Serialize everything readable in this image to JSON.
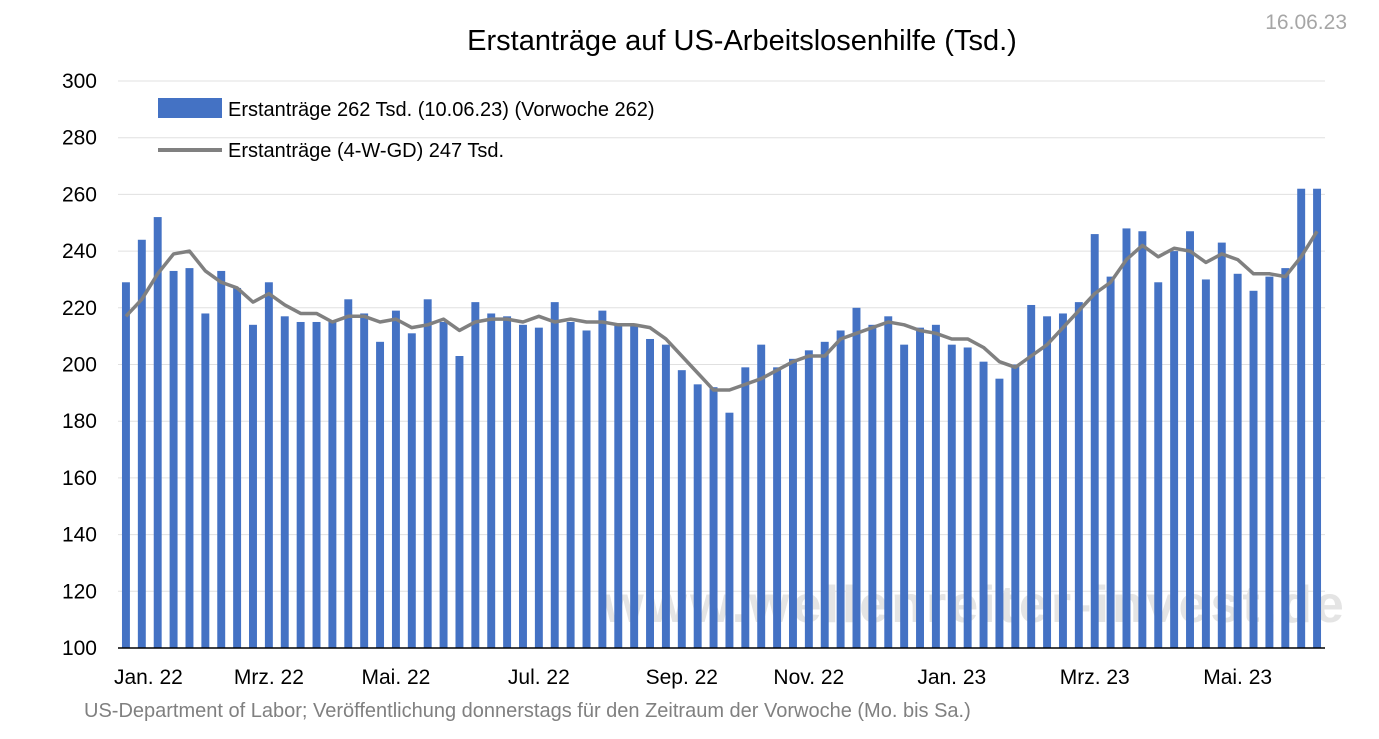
{
  "header": {
    "date": "16.06.23"
  },
  "footer": {
    "source": "US-Department of Labor; Veröffentlichung donnerstags für den Zeitraum der Vorwoche (Mo. bis Sa.)"
  },
  "watermark": "www.wellenreiter-invest.de",
  "colors": {
    "bars": "#4472c4",
    "line": "#808080",
    "grid": "#e0e0e0"
  },
  "chart_data": {
    "type": "bar",
    "title": "Erstanträge auf US-Arbeitslosenhilfe (Tsd.)",
    "xlabel": "",
    "ylabel": "",
    "ylim": [
      100,
      300
    ],
    "yticks": [
      100,
      120,
      140,
      160,
      180,
      200,
      220,
      240,
      260,
      280,
      300
    ],
    "grid": true,
    "legend_position": "top-left",
    "x_tick_labels": [
      {
        "label": "Jan. 22",
        "index": 0
      },
      {
        "label": "Mrz. 22",
        "index": 9
      },
      {
        "label": "Mai. 22",
        "index": 17
      },
      {
        "label": "Jul. 22",
        "index": 26
      },
      {
        "label": "Sep. 22",
        "index": 35
      },
      {
        "label": "Nov. 22",
        "index": 43
      },
      {
        "label": "Jan. 23",
        "index": 52
      },
      {
        "label": "Mrz. 23",
        "index": 61
      },
      {
        "label": "Mai. 23",
        "index": 70
      }
    ],
    "series": [
      {
        "name": "Erstanträge 262 Tsd. (10.06.23) (Vorwoche 262)",
        "kind": "bar",
        "values": [
          229,
          244,
          252,
          233,
          234,
          218,
          233,
          227,
          214,
          229,
          217,
          215,
          215,
          215,
          223,
          218,
          208,
          219,
          211,
          223,
          215,
          203,
          222,
          218,
          217,
          214,
          213,
          222,
          215,
          212,
          219,
          214,
          214,
          209,
          207,
          198,
          193,
          192,
          183,
          199,
          207,
          199,
          202,
          205,
          208,
          212,
          220,
          214,
          217,
          207,
          213,
          214,
          207,
          206,
          201,
          195,
          200,
          221,
          217,
          218,
          222,
          246,
          231,
          248,
          247,
          229,
          240,
          247,
          230,
          243,
          232,
          226,
          231,
          234,
          262,
          262
        ]
      },
      {
        "name": "Erstanträge (4-W-GD) 247 Tsd.",
        "kind": "line",
        "values": [
          217,
          223,
          232,
          239,
          240,
          233,
          229,
          227,
          222,
          225,
          221,
          218,
          218,
          215,
          217,
          217,
          215,
          216,
          213,
          214,
          216,
          212,
          215,
          216,
          216,
          215,
          217,
          215,
          216,
          215,
          215,
          214,
          214,
          213,
          209,
          203,
          197,
          191,
          191,
          193,
          195,
          198,
          201,
          203,
          203,
          209,
          211,
          213,
          215,
          214,
          212,
          211,
          209,
          209,
          206,
          201,
          199,
          203,
          207,
          213,
          219,
          225,
          229,
          237,
          242,
          238,
          241,
          240,
          236,
          239,
          237,
          232,
          232,
          231,
          238,
          247
        ]
      }
    ]
  }
}
